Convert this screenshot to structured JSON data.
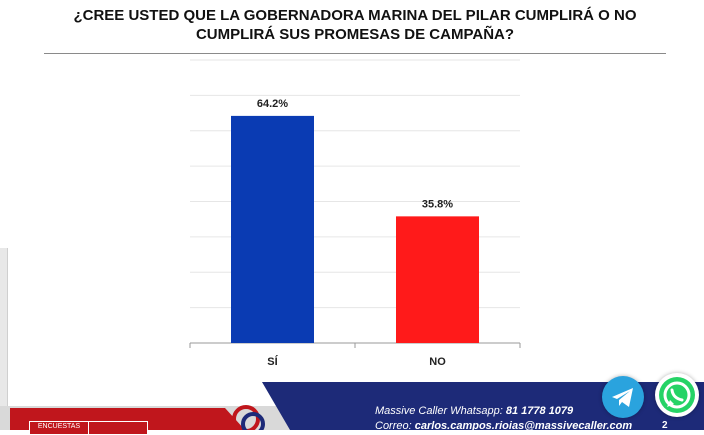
{
  "chart_data": {
    "type": "bar",
    "title": "¿CREE USTED QUE LA GOBERNADORA MARINA DEL PILAR CUMPLIRÁ O NO CUMPLIRÁ SUS PROMESAS DE CAMPAÑA?",
    "categories": [
      "SÍ",
      "NO"
    ],
    "values": [
      64.2,
      35.8
    ],
    "value_labels": [
      "64.2%",
      "35.8%"
    ],
    "colors": [
      "#0a3bb3",
      "#ff1a1a"
    ],
    "ylim": [
      0,
      80
    ],
    "grid": true,
    "legend": "none"
  },
  "footer": {
    "whatsapp_line_label": "Massive Caller Whatsapp:",
    "whatsapp_number": "81 1778 1079",
    "email_line_label": "Correo:",
    "email": "carlos.campos.rioias@massivecaller.com",
    "badge_label": "ENCUESTAS",
    "page_number": "2",
    "colors": {
      "navy": "#1d2a78",
      "red": "#c0161c",
      "telegram": "#2aa3de",
      "whatsapp": "#25d366"
    }
  },
  "icons": [
    "telegram-icon",
    "whatsapp-icon",
    "massive-caller-logo-icon"
  ]
}
